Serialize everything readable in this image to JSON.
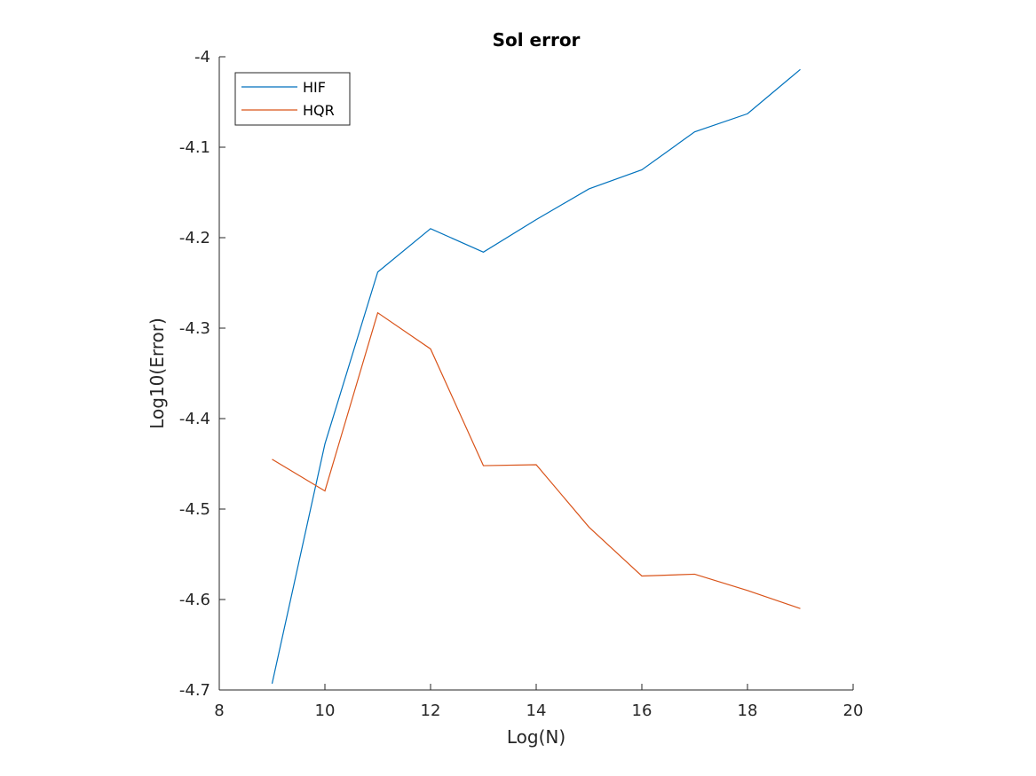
{
  "chart_data": {
    "type": "line",
    "title": "Sol error",
    "xlabel": "Log(N)",
    "ylabel": "Log10(Error)",
    "xlim": [
      8,
      20
    ],
    "ylim": [
      -4.7,
      -4.0
    ],
    "xticks": [
      8,
      10,
      12,
      14,
      16,
      18,
      20
    ],
    "yticks": [
      -4.7,
      -4.6,
      -4.5,
      -4.4,
      -4.3,
      -4.2,
      -4.1,
      -4
    ],
    "xtick_labels": [
      "8",
      "10",
      "12",
      "14",
      "16",
      "18",
      "20"
    ],
    "ytick_labels": [
      "-4.7",
      "-4.6",
      "-4.5",
      "-4.4",
      "-4.3",
      "-4.2",
      "-4.1",
      "-4"
    ],
    "grid": false,
    "legend_position": "top-left",
    "x": [
      9,
      10,
      11,
      12,
      13,
      14,
      15,
      16,
      17,
      18,
      19
    ],
    "series": [
      {
        "name": "HIF",
        "color": "#0072BD",
        "values": [
          -4.693,
          -4.428,
          -4.238,
          -4.19,
          -4.216,
          -4.18,
          -4.146,
          -4.125,
          -4.083,
          -4.063,
          -4.014
        ]
      },
      {
        "name": "HQR",
        "color": "#D95319",
        "values": [
          -4.445,
          -4.48,
          -4.283,
          -4.323,
          -4.452,
          -4.451,
          -4.52,
          -4.574,
          -4.572,
          -4.59,
          -4.61
        ]
      }
    ]
  }
}
